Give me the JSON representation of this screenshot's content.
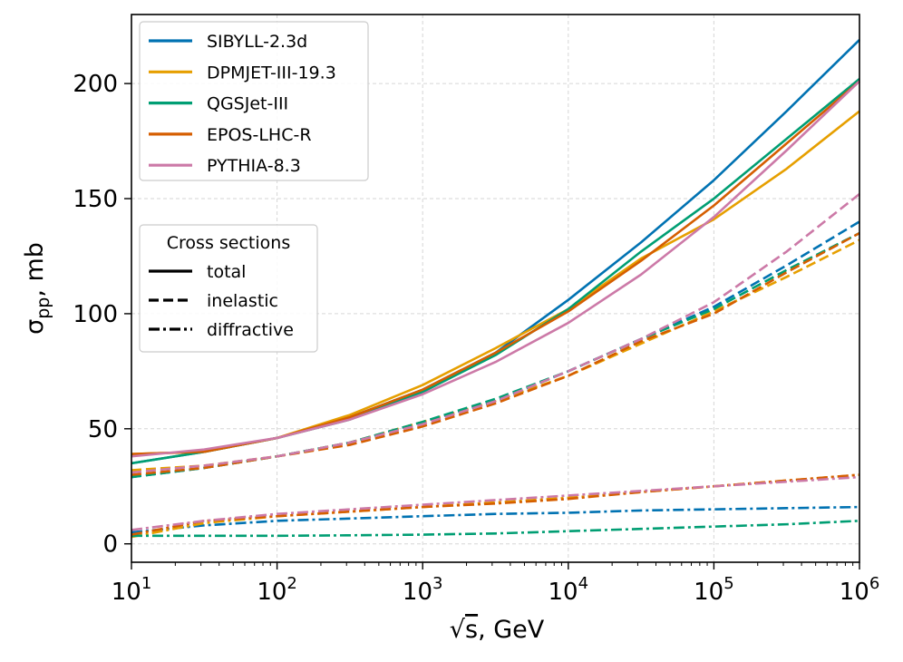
{
  "chart_data": {
    "type": "line",
    "xlabel_radicand": "s",
    "xlabel_unit": ", GeV",
    "ylabel_base": "σ",
    "ylabel_sub": "pp",
    "ylabel_unit": ", mb",
    "x_scale": "log",
    "xlim": [
      10,
      1000000
    ],
    "ylim": [
      -8,
      230
    ],
    "x_ticks": [
      {
        "value": 10,
        "base": "10",
        "exp": "1"
      },
      {
        "value": 100,
        "base": "10",
        "exp": "2"
      },
      {
        "value": 1000,
        "base": "10",
        "exp": "3"
      },
      {
        "value": 10000,
        "base": "10",
        "exp": "4"
      },
      {
        "value": 100000,
        "base": "10",
        "exp": "5"
      },
      {
        "value": 1000000,
        "base": "10",
        "exp": "6"
      }
    ],
    "y_ticks": [
      0,
      50,
      100,
      150,
      200
    ],
    "grid": true,
    "legend_models": {
      "placement": "top-left",
      "entries": [
        "SIBYLL-2.3d",
        "DPMJET-III-19.3",
        "QGSJet-III",
        "EPOS-LHC-R",
        "PYTHIA-8.3"
      ]
    },
    "legend_styles": {
      "placement": "upper-left, below models legend",
      "title": "Cross sections",
      "entries": [
        {
          "label": "total",
          "style": "solid"
        },
        {
          "label": "inelastic",
          "style": "dashed"
        },
        {
          "label": "diffractive",
          "style": "dashdot"
        }
      ]
    },
    "x": [
      10,
      31.6,
      100,
      316,
      1000,
      3162,
      10000,
      31623,
      100000,
      316228,
      1000000
    ],
    "series": [
      {
        "name": "SIBYLL-2.3d",
        "color": "#0072b2",
        "total": [
          35,
          40,
          46,
          55,
          67,
          83,
          106,
          131,
          158,
          188,
          219
        ],
        "inelastic": [
          29,
          33,
          38,
          44,
          53,
          62,
          75,
          89,
          103,
          121,
          140
        ],
        "diffractive": [
          5,
          8,
          10,
          11,
          12,
          13,
          13.5,
          14.5,
          15,
          15.5,
          16
        ]
      },
      {
        "name": "DPMJET-III-19.3",
        "color": "#e69f00",
        "total": [
          39,
          40,
          46,
          56,
          69,
          85,
          102,
          124,
          141,
          163,
          188
        ],
        "inelastic": [
          32,
          34,
          38,
          44,
          53,
          62,
          73,
          87,
          101,
          116,
          132
        ],
        "diffractive": [
          3,
          9,
          12,
          14,
          16,
          18,
          20,
          22.5,
          25,
          27.5,
          30
        ]
      },
      {
        "name": "QGSJet-III",
        "color": "#009e73",
        "total": [
          35,
          40,
          46,
          54,
          66,
          82,
          102,
          127,
          150,
          176,
          202
        ],
        "inelastic": [
          29,
          33,
          38,
          44,
          53,
          63,
          75,
          89,
          102,
          119,
          135
        ],
        "diffractive": [
          3.5,
          3.5,
          3.5,
          3.7,
          4,
          4.5,
          5.5,
          6.5,
          7.5,
          8.5,
          10
        ]
      },
      {
        "name": "EPOS-LHC-R",
        "color": "#d55e00",
        "total": [
          39,
          40,
          46,
          55,
          67,
          83,
          101,
          123,
          147,
          174,
          201
        ],
        "inelastic": [
          30,
          33,
          38,
          43,
          51,
          61,
          73,
          88,
          100,
          118,
          135
        ],
        "diffractive": [
          4,
          10,
          12,
          14,
          16,
          17.5,
          19.5,
          22.5,
          25,
          27.5,
          30
        ]
      },
      {
        "name": "PYTHIA-8.3",
        "color": "#cc79a7",
        "total": [
          38,
          41,
          46,
          54,
          65,
          79,
          96,
          117,
          142,
          171,
          201
        ],
        "inelastic": [
          31,
          34,
          38,
          44,
          52,
          62,
          75,
          89,
          105,
          127,
          152
        ],
        "diffractive": [
          6,
          10,
          13,
          15,
          17,
          19,
          21,
          23,
          25,
          27,
          29
        ]
      }
    ]
  }
}
